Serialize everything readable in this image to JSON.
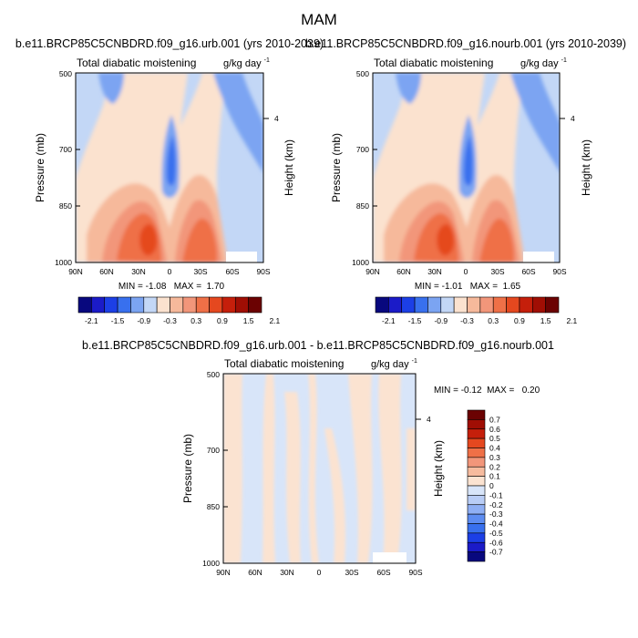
{
  "figure": {
    "main_title": "MAM"
  },
  "colors": {
    "panel_scale": [
      "#08087e",
      "#1b1bc8",
      "#1c3fe6",
      "#3870ee",
      "#7ba4f2",
      "#c3d7f6",
      "#fbe2cf",
      "#f6b99b",
      "#f2967a",
      "#ef7047",
      "#e5481f",
      "#c51f0b",
      "#a00e04",
      "#6b0202"
    ],
    "diff_scale": [
      "#08087e",
      "#1b1bc8",
      "#1c3fe6",
      "#3870ee",
      "#5d8cf1",
      "#8faff4",
      "#b9cdf6",
      "#d8e5f9",
      "#fbe3d1",
      "#f6bb9e",
      "#f2967a",
      "#ef7047",
      "#e5481f",
      "#c51f0b",
      "#a00e04",
      "#6b0202"
    ],
    "white_patch": "#ffffff"
  },
  "chart_data": [
    {
      "type": "heatmap",
      "panel": "top-left",
      "title": "b.e11.BRCP85C5CNBDRD.f09_g16.urb.001 (yrs 2010-2039)",
      "left_label": "Total diabatic moistening",
      "units_text": "g/kg day",
      "units_exp": "-1",
      "ylabel": "Pressure (mb)",
      "y2label": "Height (km)",
      "y_ticks": [
        "500",
        "700",
        "850",
        "1000"
      ],
      "y2_ticks": [
        "4"
      ],
      "x_ticks": [
        "90N",
        "60N",
        "30N",
        "0",
        "30S",
        "60S",
        "90S"
      ],
      "x_range": [
        90,
        -90
      ],
      "y_range": [
        1000,
        500
      ],
      "stats_text": "MIN = -1.08   MAX =  1.70",
      "min": -1.08,
      "max": 1.7,
      "colorbar_labels": [
        "-2.1",
        "-1.5",
        "-0.9",
        "-0.3",
        "0.3",
        "0.9",
        "1.5",
        "2.1"
      ]
    },
    {
      "type": "heatmap",
      "panel": "top-right",
      "title": "b.e11.BRCP85C5CNBDRD.f09_g16.nourb.001 (yrs 2010-2039)",
      "left_label": "Total diabatic moistening",
      "units_text": "g/kg day",
      "units_exp": "-1",
      "ylabel": "Pressure (mb)",
      "y2label": "Height (km)",
      "y_ticks": [
        "500",
        "700",
        "850",
        "1000"
      ],
      "y2_ticks": [
        "4"
      ],
      "x_ticks": [
        "90N",
        "60N",
        "30N",
        "0",
        "30S",
        "60S",
        "90S"
      ],
      "x_range": [
        90,
        -90
      ],
      "y_range": [
        1000,
        500
      ],
      "stats_text": "MIN = -1.01   MAX =  1.65",
      "min": -1.01,
      "max": 1.65,
      "colorbar_labels": [
        "-2.1",
        "-1.5",
        "-0.9",
        "-0.3",
        "0.3",
        "0.9",
        "1.5",
        "2.1"
      ]
    },
    {
      "type": "heatmap",
      "panel": "bottom",
      "title": "b.e11.BRCP85C5CNBDRD.f09_g16.urb.001 - b.e11.BRCP85C5CNBDRD.f09_g16.nourb.001",
      "left_label": "Total diabatic moistening",
      "units_text": "g/kg day",
      "units_exp": "-1",
      "ylabel": "Pressure (mb)",
      "y2label": "Height (km)",
      "y_ticks": [
        "500",
        "700",
        "850",
        "1000"
      ],
      "y2_ticks": [
        "4"
      ],
      "x_ticks": [
        "90N",
        "60N",
        "30N",
        "0",
        "30S",
        "60S",
        "90S"
      ],
      "x_range": [
        90,
        -90
      ],
      "y_range": [
        1000,
        500
      ],
      "stats_text": "MIN = -0.12  MAX =   0.20",
      "min": -0.12,
      "max": 0.2,
      "colorbar_labels": [
        "0.7",
        "0.6",
        "0.5",
        "0.4",
        "0.3",
        "0.2",
        "0.1",
        "0",
        "-0.1",
        "-0.2",
        "-0.3",
        "-0.4",
        "-0.5",
        "-0.6",
        "-0.7"
      ]
    }
  ]
}
